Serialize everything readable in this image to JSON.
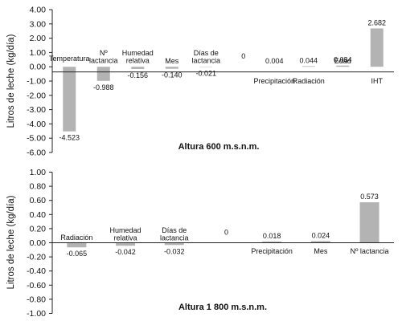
{
  "chart_data": [
    {
      "type": "bar",
      "ylabel": "Litros de leche (kg/día)",
      "annotation": "Altura 600 m.s.n.m.",
      "ylim": [
        -6.0,
        4.0
      ],
      "yticks": [
        "4.00",
        "3.00",
        "2.00",
        "1.00",
        "0.00",
        "-1.00",
        "-2.00",
        "-3.00",
        "-4.00",
        "-5.00",
        "-6.00"
      ],
      "categories": [
        [
          "Temperatura"
        ],
        [
          "Nº",
          "lactancia"
        ],
        [
          "Humedad",
          "relativa"
        ],
        [
          "Mes"
        ],
        [
          "Días de",
          "lactancia"
        ],
        [
          ""
        ],
        [
          "Precipitación"
        ],
        [
          "Radiación"
        ],
        [
          "Edad"
        ],
        [
          "IHT"
        ]
      ],
      "values": [
        -4.523,
        -0.988,
        -0.156,
        -0.14,
        -0.021,
        0,
        0.004,
        0.044,
        0.084,
        2.682
      ],
      "value_labels": [
        "-4.523",
        "-0.988",
        "-0.156",
        "-0.140",
        "-0.021",
        "0",
        "0.004",
        "0.044",
        "0.084",
        "2.682"
      ],
      "bar_color": "#b3b3b3",
      "grid": false
    },
    {
      "type": "bar",
      "ylabel": "Litros de leche (kg/día)",
      "annotation": "Altura 1 800 m.s.n.m.",
      "ylim": [
        -1.0,
        1.0
      ],
      "yticks": [
        "1.00",
        "0.80",
        "0.60",
        "0.40",
        "0.20",
        "0.00",
        "-0.20",
        "-0.40",
        "-0.60",
        "-0.80",
        "-1.00"
      ],
      "categories": [
        [
          "Radiación"
        ],
        [
          "Humedad",
          "relativa"
        ],
        [
          "Días de",
          "lactancia"
        ],
        [
          ""
        ],
        [
          "Precipitación"
        ],
        [
          "Mes"
        ],
        [
          "Nº lactancia"
        ]
      ],
      "values": [
        -0.065,
        -0.042,
        -0.032,
        0,
        0.018,
        0.024,
        0.573
      ],
      "value_labels": [
        "-0.065",
        "-0.042",
        "-0.032",
        "0",
        "0.018",
        "0.024",
        "0.573"
      ],
      "bar_color": "#b3b3b3",
      "grid": false
    }
  ]
}
